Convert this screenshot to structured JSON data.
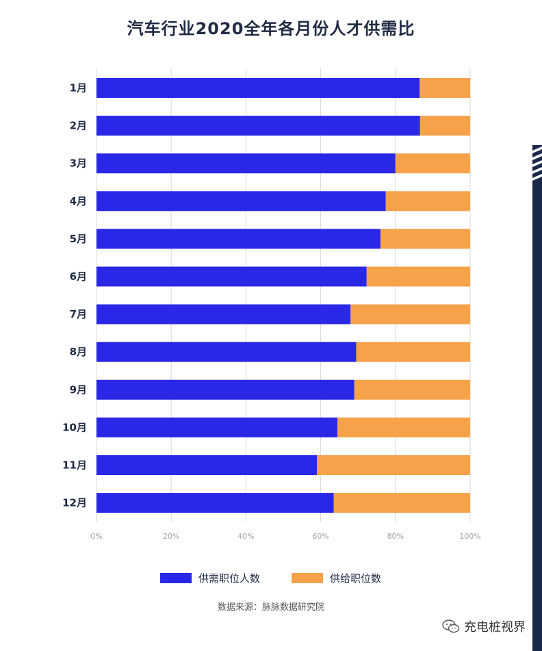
{
  "chart_data": {
    "type": "bar",
    "orientation": "horizontal",
    "stacked": true,
    "title": "汽车行业2020全年各月份人才供需比",
    "categories": [
      "1月",
      "2月",
      "3月",
      "4月",
      "5月",
      "6月",
      "7月",
      "8月",
      "9月",
      "10月",
      "11月",
      "12月"
    ],
    "series": [
      {
        "name": "供需职位人数",
        "color": "#2a27e6",
        "values": [
          86.5,
          86.6,
          80.0,
          77.4,
          76.0,
          72.3,
          68.0,
          69.5,
          69.0,
          64.5,
          59.0,
          63.5
        ]
      },
      {
        "name": "供给职位数",
        "color": "#f5a24b",
        "values": [
          13.5,
          13.4,
          20.0,
          22.6,
          24.0,
          27.7,
          32.0,
          30.5,
          31.0,
          35.5,
          41.0,
          36.5
        ]
      }
    ],
    "xticks": [
      "0%",
      "20%",
      "40%",
      "60%",
      "80%",
      "100%"
    ],
    "xlim": [
      0,
      100
    ],
    "grid": true,
    "legend_position": "bottom"
  },
  "source": "数据来源：脉脉数据研究院",
  "watermark": {
    "text": "充电桩视界",
    "icon": "wechat-icon"
  },
  "colors": {
    "title": "#1f2a44",
    "grid": "#d9d9d9",
    "edge_bar": "#1b2a4a"
  }
}
